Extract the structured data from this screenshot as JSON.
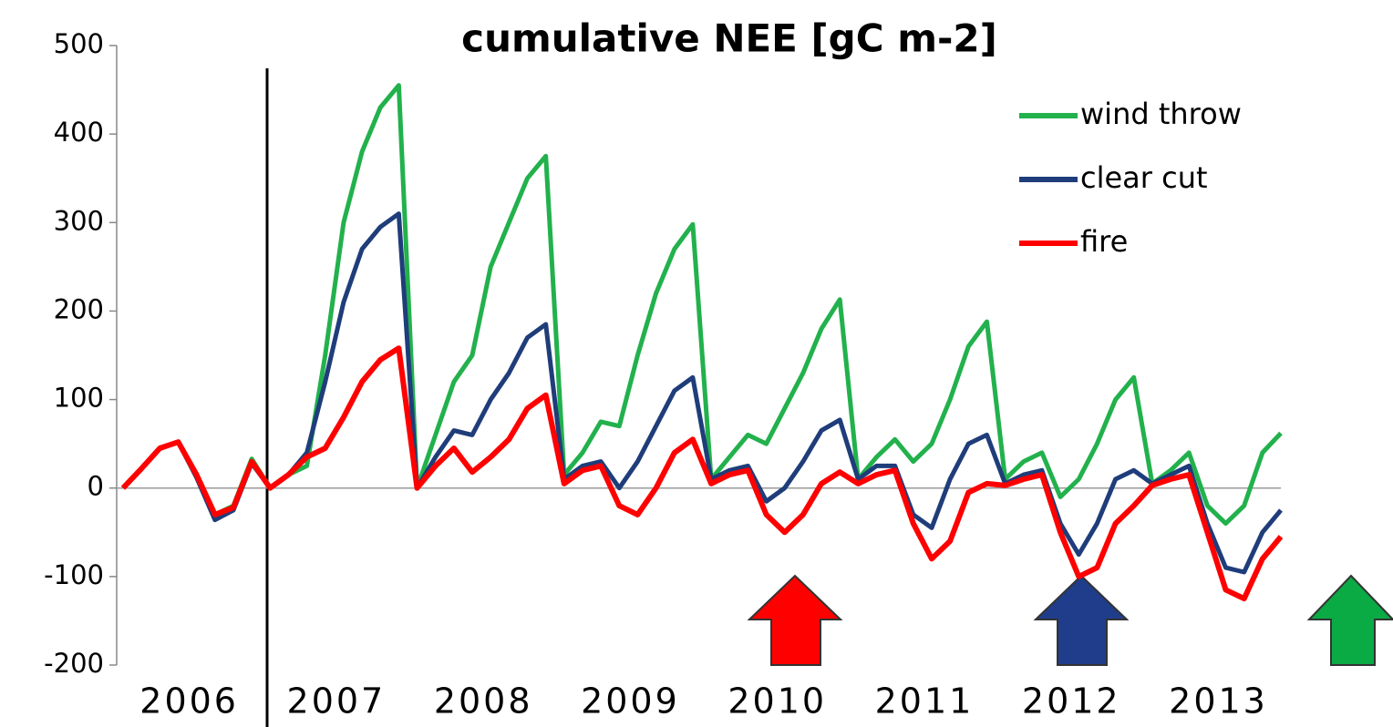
{
  "chart_data": {
    "type": "line",
    "title": "cumulative NEE [gC m-2]",
    "categories": [
      null,
      null,
      null,
      null,
      "2006",
      null,
      null,
      null,
      null,
      null,
      null,
      null,
      "2007",
      null,
      null,
      null,
      null,
      null,
      null,
      null,
      "2008",
      null,
      null,
      null,
      null,
      null,
      null,
      null,
      "2009",
      null,
      null,
      null,
      null,
      null,
      null,
      null,
      "2010",
      null,
      null,
      null,
      null,
      null,
      null,
      null,
      "2011",
      null,
      null,
      null,
      null,
      null,
      null,
      null,
      "2012",
      null,
      null,
      null,
      null,
      null,
      null,
      null,
      "2013",
      null,
      null,
      null
    ],
    "series": [
      {
        "name": "wind throw",
        "color": "#22b14c",
        "values": [
          0,
          22,
          45,
          52,
          15,
          -30,
          -20,
          33,
          0,
          15,
          25,
          150,
          300,
          380,
          430,
          455,
          0,
          60,
          120,
          150,
          250,
          300,
          350,
          375,
          15,
          40,
          75,
          70,
          150,
          220,
          270,
          298,
          10,
          35,
          60,
          50,
          90,
          130,
          180,
          213,
          10,
          35,
          55,
          30,
          50,
          100,
          160,
          188,
          10,
          30,
          40,
          -10,
          10,
          50,
          100,
          125,
          5,
          20,
          40,
          -20,
          -40,
          -20,
          40,
          62
        ]
      },
      {
        "name": "clear cut",
        "color": "#1f3d7a",
        "values": [
          0,
          22,
          45,
          52,
          12,
          -36,
          -25,
          28,
          0,
          15,
          40,
          120,
          210,
          270,
          295,
          310,
          0,
          35,
          65,
          60,
          100,
          130,
          170,
          185,
          10,
          25,
          30,
          0,
          30,
          70,
          110,
          125,
          10,
          20,
          25,
          -15,
          0,
          30,
          65,
          77,
          10,
          25,
          25,
          -30,
          -45,
          10,
          50,
          60,
          5,
          15,
          20,
          -40,
          -75,
          -40,
          10,
          20,
          5,
          15,
          25,
          -40,
          -90,
          -95,
          -50,
          -25
        ]
      },
      {
        "name": "fire",
        "color": "#ff0000",
        "values": [
          0,
          22,
          45,
          52,
          15,
          -30,
          -22,
          30,
          0,
          15,
          35,
          45,
          80,
          120,
          145,
          158,
          0,
          25,
          45,
          18,
          35,
          55,
          90,
          105,
          5,
          20,
          25,
          -20,
          -30,
          0,
          40,
          55,
          5,
          15,
          20,
          -30,
          -50,
          -30,
          5,
          18,
          5,
          15,
          20,
          -40,
          -80,
          -60,
          -5,
          5,
          3,
          10,
          15,
          -50,
          -100,
          -90,
          -40,
          -20,
          3,
          10,
          15,
          -50,
          -115,
          -125,
          -80,
          -55
        ]
      }
    ],
    "ylim": [
      -200,
      500
    ],
    "yticks": [
      -200,
      -100,
      0,
      100,
      200,
      300,
      400,
      500
    ]
  }
}
